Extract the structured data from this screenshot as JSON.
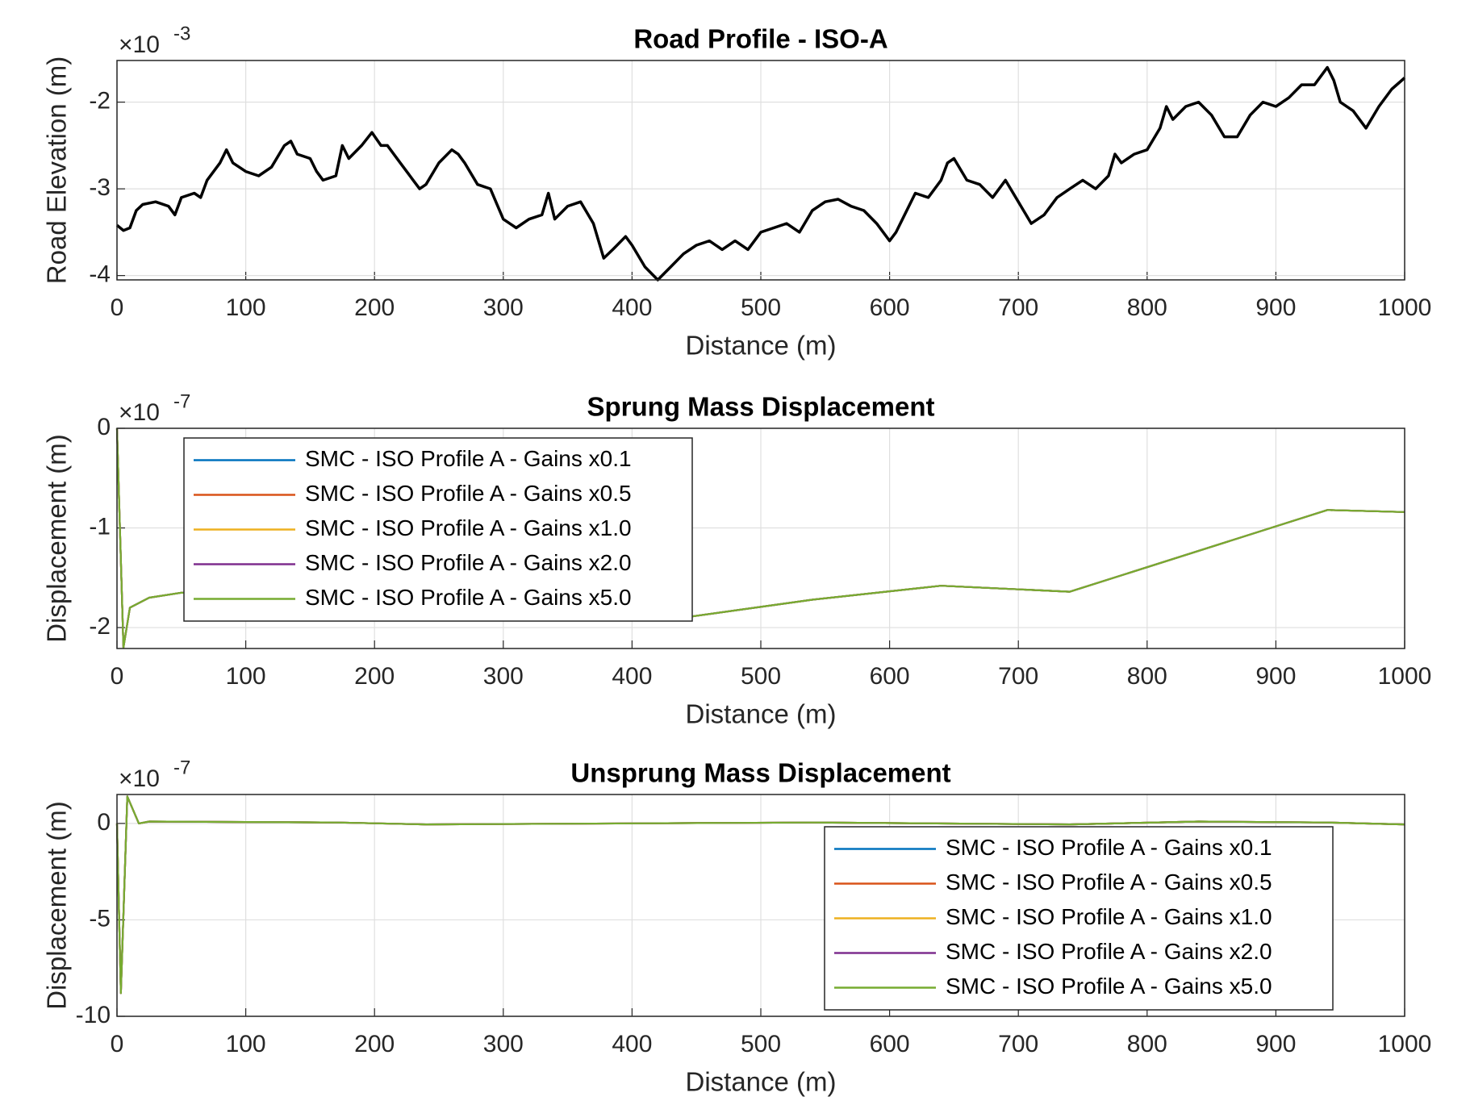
{
  "chart_data": [
    {
      "type": "line",
      "title": "Road Profile - ISO-A",
      "xlabel": "Distance (m)",
      "ylabel": "Road Elevation (m)",
      "y_multiplier": "×10",
      "y_exponent": "-3",
      "xlim": [
        0,
        1000
      ],
      "xticks": [
        0,
        100,
        200,
        300,
        400,
        500,
        600,
        700,
        800,
        900,
        1000
      ],
      "ylim": [
        -4.05,
        -1.52
      ],
      "yticks": [
        -4,
        -3,
        -2
      ],
      "grid": true,
      "x": [
        0,
        5,
        10,
        15,
        20,
        30,
        40,
        45,
        50,
        60,
        65,
        70,
        80,
        85,
        90,
        100,
        110,
        120,
        130,
        135,
        140,
        150,
        155,
        160,
        170,
        175,
        180,
        190,
        198,
        205,
        210,
        220,
        230,
        235,
        240,
        250,
        260,
        265,
        270,
        280,
        290,
        300,
        310,
        320,
        330,
        335,
        340,
        350,
        360,
        370,
        378,
        385,
        395,
        400,
        410,
        420,
        430,
        440,
        450,
        460,
        470,
        480,
        490,
        500,
        510,
        520,
        530,
        540,
        550,
        560,
        570,
        580,
        590,
        600,
        605,
        610,
        620,
        630,
        640,
        645,
        650,
        660,
        670,
        680,
        690,
        700,
        710,
        720,
        730,
        740,
        750,
        760,
        770,
        775,
        780,
        790,
        800,
        810,
        815,
        820,
        830,
        840,
        850,
        860,
        870,
        880,
        890,
        900,
        910,
        920,
        930,
        940,
        945,
        950,
        960,
        970,
        980,
        990,
        1000
      ],
      "series": [
        {
          "name": "Road Profile",
          "color": "#000000",
          "values": [
            -3.42,
            -3.48,
            -3.45,
            -3.25,
            -3.18,
            -3.15,
            -3.2,
            -3.3,
            -3.1,
            -3.05,
            -3.1,
            -2.9,
            -2.7,
            -2.55,
            -2.7,
            -2.8,
            -2.85,
            -2.75,
            -2.5,
            -2.45,
            -2.6,
            -2.65,
            -2.8,
            -2.9,
            -2.85,
            -2.5,
            -2.65,
            -2.5,
            -2.35,
            -2.5,
            -2.5,
            -2.7,
            -2.9,
            -3.0,
            -2.95,
            -2.7,
            -2.55,
            -2.6,
            -2.7,
            -2.95,
            -3.0,
            -3.35,
            -3.45,
            -3.35,
            -3.3,
            -3.05,
            -3.35,
            -3.2,
            -3.15,
            -3.4,
            -3.8,
            -3.7,
            -3.55,
            -3.65,
            -3.9,
            -4.05,
            -3.9,
            -3.75,
            -3.65,
            -3.6,
            -3.7,
            -3.6,
            -3.7,
            -3.5,
            -3.45,
            -3.4,
            -3.5,
            -3.25,
            -3.15,
            -3.12,
            -3.2,
            -3.25,
            -3.4,
            -3.6,
            -3.5,
            -3.35,
            -3.05,
            -3.1,
            -2.9,
            -2.7,
            -2.65,
            -2.9,
            -2.95,
            -3.1,
            -2.9,
            -3.15,
            -3.4,
            -3.3,
            -3.1,
            -3.0,
            -2.9,
            -3.0,
            -2.85,
            -2.6,
            -2.7,
            -2.6,
            -2.55,
            -2.3,
            -2.05,
            -2.2,
            -2.05,
            -2.0,
            -2.15,
            -2.4,
            -2.4,
            -2.15,
            -2.0,
            -2.05,
            -1.95,
            -1.8,
            -1.8,
            -1.6,
            -1.75,
            -2.0,
            -2.1,
            -2.3,
            -2.05,
            -1.85,
            -1.72
          ]
        }
      ]
    },
    {
      "type": "line",
      "title": "Sprung Mass Displacement",
      "xlabel": "Distance (m)",
      "ylabel": "Displacement (m)",
      "y_multiplier": "×10",
      "y_exponent": "-7",
      "xlim": [
        0,
        1000
      ],
      "xticks": [
        0,
        100,
        200,
        300,
        400,
        500,
        600,
        700,
        800,
        900,
        1000
      ],
      "ylim": [
        -2.21,
        0
      ],
      "yticks": [
        -2,
        -1,
        0
      ],
      "grid": true,
      "legend": "northwest",
      "x": [
        0,
        5,
        10,
        25,
        50,
        340,
        440,
        540,
        640,
        740,
        940,
        1000
      ],
      "series": [
        {
          "name": "SMC - ISO Profile A - Gains x0.1",
          "color": "#0072BD",
          "values": [
            0,
            -2.2,
            -1.8,
            -1.7,
            -1.65,
            -1.82,
            -1.9,
            -1.72,
            -1.58,
            -1.64,
            -0.82,
            -0.84
          ]
        },
        {
          "name": "SMC - ISO Profile A - Gains x0.5",
          "color": "#D95319",
          "values": [
            0,
            -2.2,
            -1.8,
            -1.7,
            -1.65,
            -1.82,
            -1.9,
            -1.72,
            -1.58,
            -1.64,
            -0.82,
            -0.84
          ]
        },
        {
          "name": "SMC - ISO Profile A - Gains x1.0",
          "color": "#EDB120",
          "values": [
            0,
            -2.2,
            -1.8,
            -1.7,
            -1.65,
            -1.82,
            -1.9,
            -1.72,
            -1.58,
            -1.64,
            -0.82,
            -0.84
          ]
        },
        {
          "name": "SMC - ISO Profile A - Gains x2.0",
          "color": "#7E2F8E",
          "values": [
            0,
            -2.2,
            -1.8,
            -1.7,
            -1.65,
            -1.82,
            -1.9,
            -1.72,
            -1.58,
            -1.64,
            -0.82,
            -0.84
          ]
        },
        {
          "name": "SMC - ISO Profile A - Gains x5.0",
          "color": "#77AC30",
          "values": [
            0,
            -2.2,
            -1.8,
            -1.7,
            -1.65,
            -1.82,
            -1.9,
            -1.72,
            -1.58,
            -1.64,
            -0.82,
            -0.84
          ]
        }
      ]
    },
    {
      "type": "line",
      "title": "Unsprung Mass Displacement",
      "xlabel": "Distance (m)",
      "ylabel": "Displacement (m)",
      "y_multiplier": "×10",
      "y_exponent": "-7",
      "xlim": [
        0,
        1000
      ],
      "xticks": [
        0,
        100,
        200,
        300,
        400,
        500,
        600,
        700,
        800,
        900,
        1000
      ],
      "ylim": [
        -10,
        1.5
      ],
      "yticks": [
        -10,
        -5,
        0
      ],
      "grid": true,
      "legend": "southeast",
      "x": [
        0,
        3,
        8,
        17,
        25,
        170,
        240,
        540,
        740,
        840,
        940,
        1000
      ],
      "series": [
        {
          "name": "SMC - ISO Profile A - Gains x0.1",
          "color": "#0072BD",
          "values": [
            0,
            -8.8,
            1.4,
            0,
            0.1,
            0.05,
            -0.05,
            0.05,
            -0.05,
            0.1,
            0.05,
            -0.05
          ]
        },
        {
          "name": "SMC - ISO Profile A - Gains x0.5",
          "color": "#D95319",
          "values": [
            0,
            -8.8,
            1.4,
            0,
            0.1,
            0.05,
            -0.05,
            0.05,
            -0.05,
            0.1,
            0.05,
            -0.05
          ]
        },
        {
          "name": "SMC - ISO Profile A - Gains x1.0",
          "color": "#EDB120",
          "values": [
            0,
            -8.8,
            1.4,
            0,
            0.1,
            0.05,
            -0.05,
            0.05,
            -0.05,
            0.1,
            0.05,
            -0.05
          ]
        },
        {
          "name": "SMC - ISO Profile A - Gains x2.0",
          "color": "#7E2F8E",
          "values": [
            0,
            -8.8,
            1.4,
            0,
            0.1,
            0.05,
            -0.05,
            0.05,
            -0.05,
            0.1,
            0.05,
            -0.05
          ]
        },
        {
          "name": "SMC - ISO Profile A - Gains x5.0",
          "color": "#77AC30",
          "values": [
            0,
            -8.8,
            1.4,
            0,
            0.1,
            0.05,
            -0.05,
            0.05,
            -0.05,
            0.1,
            0.05,
            -0.05
          ]
        }
      ]
    }
  ]
}
